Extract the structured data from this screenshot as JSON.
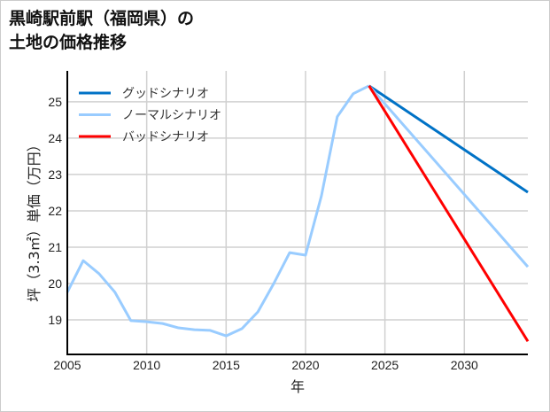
{
  "chart_data": {
    "type": "line",
    "title_line1": "黒崎駅前駅（福岡県）の",
    "title_line2": "土地の価格推移",
    "xlabel": "年",
    "ylabel": "坪（3.3㎡）単価（万円）",
    "xlim": [
      2005,
      2034
    ],
    "ylim": [
      18.05,
      25.85
    ],
    "grid": true,
    "legend_placement": "top-left",
    "xticks": [
      2005,
      2010,
      2015,
      2020,
      2025,
      2030
    ],
    "yticks": [
      19,
      20,
      21,
      22,
      23,
      24,
      25
    ],
    "history": {
      "x": [
        2005,
        2006,
        2007,
        2008,
        2009,
        2010,
        2011,
        2012,
        2013,
        2014,
        2015,
        2016,
        2017,
        2018,
        2019,
        2020,
        2021,
        2022,
        2023,
        2024
      ],
      "y": [
        19.76,
        20.63,
        20.27,
        19.76,
        18.98,
        18.95,
        18.9,
        18.78,
        18.73,
        18.71,
        18.56,
        18.76,
        19.22,
        20.0,
        20.85,
        20.78,
        22.41,
        24.59,
        25.22,
        25.44
      ]
    },
    "series": [
      {
        "name": "グッドシナリオ",
        "color": "#0072c6",
        "x": [
          2024,
          2034
        ],
        "y": [
          25.44,
          22.51
        ]
      },
      {
        "name": "ノーマルシナリオ",
        "color": "#99ccff",
        "x": [
          2024,
          2034
        ],
        "y": [
          25.44,
          20.46
        ]
      },
      {
        "name": "バッドシナリオ",
        "color": "#ff0000",
        "x": [
          2024,
          2034
        ],
        "y": [
          25.44,
          18.41
        ]
      }
    ]
  }
}
